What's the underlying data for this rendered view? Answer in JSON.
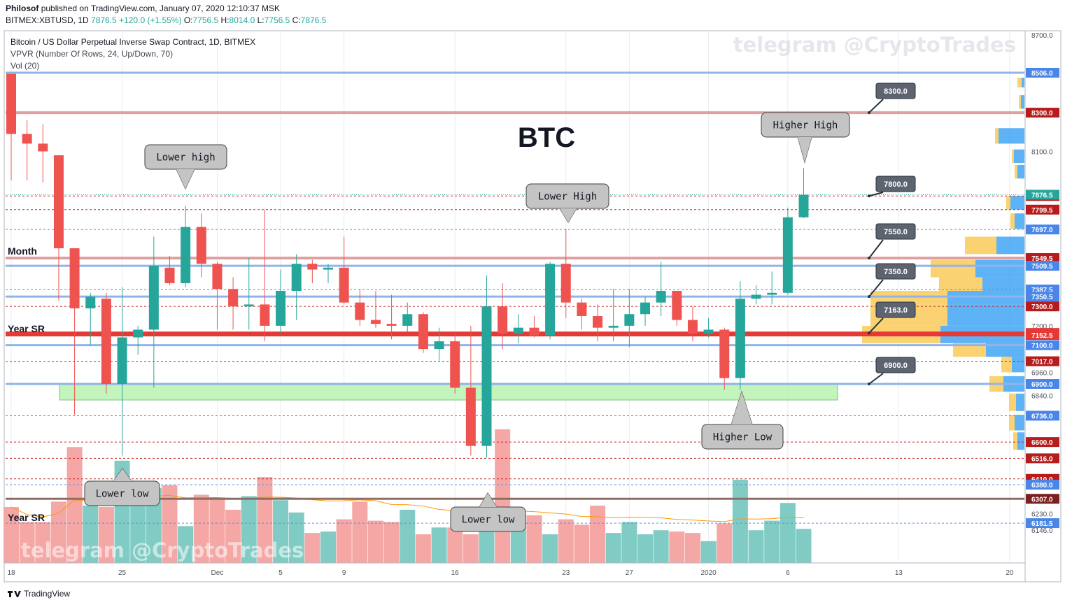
{
  "header": {
    "author": "Philosof",
    "published_text": "published on TradingView.com, January 07, 2020 12:10:37 MSK",
    "symbol": "BITMEX:XBTUSD, 1D",
    "last": "7876.5",
    "change": "+120.0 (+1.55%)",
    "o_label": "O:",
    "o_val": "7756.5",
    "h_label": "H:",
    "h_val": "8014.0",
    "l_label": "L:",
    "l_val": "7756.5",
    "c_label": "C:",
    "c_val": "7876.5"
  },
  "legend": {
    "title": "Bitcoin / US Dollar Perpetual Inverse Swap Contract, 1D, BITMEX",
    "vpvr": "VPVR (Number Of Rows, 24, Up/Down, 70)",
    "vol": "Vol (20)"
  },
  "watermark": "telegram @CryptoTrades",
  "big_label": "BTC",
  "footer_brand": "TradingView",
  "colors": {
    "up": "#26a69a",
    "down": "#ef5350",
    "grid": "#e9ecf2",
    "red_line": "#d32f2f",
    "blue_line": "#90b4e8"
  },
  "chart_data": {
    "type": "candlestick",
    "title": "Bitcoin / US Dollar Perpetual Inverse Swap Contract, 1D, BITMEX",
    "y_range": [
      6120,
      8780
    ],
    "x_ticks": [
      {
        "label": "18",
        "day": 0
      },
      {
        "label": "25",
        "day": 7
      },
      {
        "label": "Dec",
        "day": 13
      },
      {
        "label": "5",
        "day": 17
      },
      {
        "label": "9",
        "day": 21
      },
      {
        "label": "16",
        "day": 28
      },
      {
        "label": "23",
        "day": 35
      },
      {
        "label": "27",
        "day": 39
      },
      {
        "label": "2020",
        "day": 44
      },
      {
        "label": "6",
        "day": 49
      },
      {
        "label": "13",
        "day": 56
      },
      {
        "label": "20",
        "day": 63
      }
    ],
    "y_ticks": [
      "8700.0",
      "8100.0",
      "7200.0",
      "6960.0",
      "6840.0",
      "6230.0",
      "6146.0"
    ],
    "candles": [
      {
        "o": 8500,
        "h": 8500,
        "l": 7950,
        "c": 8190
      },
      {
        "o": 8190,
        "h": 8260,
        "l": 7950,
        "c": 8140
      },
      {
        "o": 8140,
        "h": 8240,
        "l": 7940,
        "c": 8100
      },
      {
        "o": 8080,
        "h": 8080,
        "l": 7330,
        "c": 7600
      },
      {
        "o": 7600,
        "h": 7600,
        "l": 6740,
        "c": 7290
      },
      {
        "o": 7290,
        "h": 7370,
        "l": 7100,
        "c": 7350
      },
      {
        "o": 7340,
        "h": 7370,
        "l": 6850,
        "c": 6900
      },
      {
        "o": 6900,
        "h": 7400,
        "l": 6530,
        "c": 7140
      },
      {
        "o": 7140,
        "h": 7200,
        "l": 7050,
        "c": 7180
      },
      {
        "o": 7180,
        "h": 7660,
        "l": 6880,
        "c": 7510
      },
      {
        "o": 7500,
        "h": 7560,
        "l": 7410,
        "c": 7420
      },
      {
        "o": 7420,
        "h": 7820,
        "l": 7400,
        "c": 7710
      },
      {
        "o": 7710,
        "h": 7780,
        "l": 7450,
        "c": 7520
      },
      {
        "o": 7520,
        "h": 7530,
        "l": 7180,
        "c": 7390
      },
      {
        "o": 7390,
        "h": 7450,
        "l": 7180,
        "c": 7300
      },
      {
        "o": 7300,
        "h": 7550,
        "l": 7180,
        "c": 7310
      },
      {
        "o": 7310,
        "h": 7800,
        "l": 7120,
        "c": 7200
      },
      {
        "o": 7200,
        "h": 7490,
        "l": 7160,
        "c": 7380
      },
      {
        "o": 7380,
        "h": 7570,
        "l": 7230,
        "c": 7520
      },
      {
        "o": 7520,
        "h": 7540,
        "l": 7420,
        "c": 7490
      },
      {
        "o": 7490,
        "h": 7520,
        "l": 7420,
        "c": 7500
      },
      {
        "o": 7500,
        "h": 7660,
        "l": 7310,
        "c": 7320
      },
      {
        "o": 7320,
        "h": 7390,
        "l": 7200,
        "c": 7230
      },
      {
        "o": 7230,
        "h": 7380,
        "l": 7190,
        "c": 7210
      },
      {
        "o": 7210,
        "h": 7360,
        "l": 7130,
        "c": 7200
      },
      {
        "o": 7200,
        "h": 7320,
        "l": 7170,
        "c": 7260
      },
      {
        "o": 7260,
        "h": 7270,
        "l": 7060,
        "c": 7080
      },
      {
        "o": 7080,
        "h": 7190,
        "l": 7020,
        "c": 7120
      },
      {
        "o": 7120,
        "h": 7170,
        "l": 6850,
        "c": 6880
      },
      {
        "o": 6880,
        "h": 7200,
        "l": 6530,
        "c": 6580
      },
      {
        "o": 6580,
        "h": 7460,
        "l": 6520,
        "c": 7300
      },
      {
        "o": 7300,
        "h": 7420,
        "l": 7080,
        "c": 7160
      },
      {
        "o": 7160,
        "h": 7260,
        "l": 7110,
        "c": 7190
      },
      {
        "o": 7190,
        "h": 7250,
        "l": 7140,
        "c": 7150
      },
      {
        "o": 7150,
        "h": 7530,
        "l": 7130,
        "c": 7520
      },
      {
        "o": 7520,
        "h": 7700,
        "l": 7240,
        "c": 7320
      },
      {
        "o": 7320,
        "h": 7340,
        "l": 7180,
        "c": 7250
      },
      {
        "o": 7250,
        "h": 7310,
        "l": 7120,
        "c": 7190
      },
      {
        "o": 7190,
        "h": 7390,
        "l": 7120,
        "c": 7200
      },
      {
        "o": 7200,
        "h": 7390,
        "l": 7090,
        "c": 7260
      },
      {
        "o": 7260,
        "h": 7350,
        "l": 7200,
        "c": 7320
      },
      {
        "o": 7320,
        "h": 7530,
        "l": 7250,
        "c": 7380
      },
      {
        "o": 7380,
        "h": 7380,
        "l": 7200,
        "c": 7230
      },
      {
        "o": 7230,
        "h": 7300,
        "l": 7120,
        "c": 7160
      },
      {
        "o": 7160,
        "h": 7240,
        "l": 7140,
        "c": 7180
      },
      {
        "o": 7180,
        "h": 7190,
        "l": 6870,
        "c": 6930
      },
      {
        "o": 6930,
        "h": 7430,
        "l": 6870,
        "c": 7340
      },
      {
        "o": 7340,
        "h": 7410,
        "l": 7310,
        "c": 7360
      },
      {
        "o": 7360,
        "h": 7480,
        "l": 7310,
        "c": 7370
      },
      {
        "o": 7370,
        "h": 7810,
        "l": 7360,
        "c": 7760
      },
      {
        "o": 7760,
        "h": 8014,
        "l": 7756,
        "c": 7876
      }
    ],
    "volume_ratios": [
      0.41,
      0.3,
      0.3,
      0.45,
      0.85,
      0.42,
      0.41,
      0.75,
      0.45,
      0.55,
      0.57,
      0.27,
      0.5,
      0.48,
      0.39,
      0.49,
      0.63,
      0.46,
      0.37,
      0.22,
      0.23,
      0.32,
      0.45,
      0.31,
      0.3,
      0.39,
      0.21,
      0.26,
      0.26,
      0.21,
      0.33,
      0.98,
      0.36,
      0.35,
      0.21,
      0.32,
      0.28,
      0.42,
      0.22,
      0.3,
      0.21,
      0.24,
      0.23,
      0.22,
      0.16,
      0.29,
      0.61,
      0.24,
      0.31,
      0.44,
      0.25
    ],
    "levels": [
      {
        "label": "8506.0",
        "price": 8506,
        "kind": "blue_solid"
      },
      {
        "label": "8300.0",
        "price": 8300,
        "kind": "red_solid"
      },
      {
        "label": "7870.0",
        "price": 7870,
        "kind": "red_dash"
      },
      {
        "label": "7799.5",
        "price": 7799.5,
        "kind": "red_dash"
      },
      {
        "label": "7697.0",
        "price": 7697,
        "kind": "blue_dash"
      },
      {
        "label": "7549.5",
        "price": 7549.5,
        "kind": "red_solid"
      },
      {
        "label": "7509.5",
        "price": 7509.5,
        "kind": "blue_solid"
      },
      {
        "label": "7387.5",
        "price": 7387.5,
        "kind": "blue_dash"
      },
      {
        "label": "7350.5",
        "price": 7350.5,
        "kind": "blue_solid"
      },
      {
        "label": "7300.0",
        "price": 7300,
        "kind": "red_dash"
      },
      {
        "label": "7163.0",
        "price": 7163,
        "kind": "red_thick"
      },
      {
        "label": "7152.5",
        "price": 7152.5,
        "kind": "red_thick"
      },
      {
        "label": "7100.0",
        "price": 7100,
        "kind": "blue_solid"
      },
      {
        "label": "7017.0",
        "price": 7017,
        "kind": "red_dash"
      },
      {
        "label": "6900.0",
        "price": 6900,
        "kind": "blue_solid"
      },
      {
        "label": "6736.0",
        "price": 6736,
        "kind": "blue_dash"
      },
      {
        "label": "6600.0",
        "price": 6600,
        "kind": "red_dash"
      },
      {
        "label": "6516.0",
        "price": 6516,
        "kind": "red_dash"
      },
      {
        "label": "6410.0",
        "price": 6410,
        "kind": "red_dash"
      },
      {
        "label": "6380.0",
        "price": 6380,
        "kind": "blue_dash"
      },
      {
        "label": "6307.0",
        "price": 6307,
        "kind": "dark_thick"
      },
      {
        "label": "6181.5",
        "price": 6181.5,
        "kind": "blue_dash"
      }
    ],
    "price_tag": "7876.5",
    "callouts_right": [
      "8300.0",
      "7800.0",
      "7550.0",
      "7350.0",
      "7163.0",
      "6900.0"
    ],
    "annotations": [
      "Lower high",
      "Lower High",
      "Higher High",
      "Lower low",
      "Lower low",
      "Higher Low"
    ],
    "zone_labels": [
      "Month",
      "Year SR",
      "Year SR"
    ]
  }
}
